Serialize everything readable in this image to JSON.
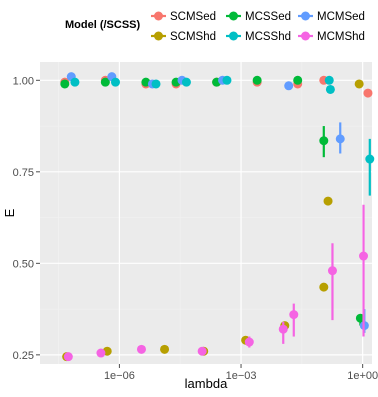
{
  "chart_data": {
    "type": "scatter",
    "title": "",
    "xlabel": "lambda",
    "ylabel": "E",
    "x_scale": "log10",
    "xlim": [
      1.1e-08,
      1.7
    ],
    "ylim": [
      0.225,
      1.05
    ],
    "x_ticks": [
      1e-06,
      0.001,
      1
    ],
    "x_tick_labels": [
      "1e−06",
      "1e−03",
      "1e+00"
    ],
    "y_ticks": [
      0.25,
      0.5,
      0.75,
      1.0
    ],
    "y_tick_labels": [
      "0.25",
      "0.50",
      "0.75",
      "1.00"
    ],
    "grid": true,
    "legend": {
      "title": "Model (/SCSS)",
      "position": "top",
      "entries": [
        "SCMSed",
        "MCSSed",
        "MCMSed",
        "SCMShd",
        "MCSShd",
        "MCMShd"
      ]
    },
    "series": [
      {
        "name": "SCMSed",
        "color": "#F8766D",
        "points": [
          {
            "x": 4.5e-08,
            "y": 0.995
          },
          {
            "x": 4.5e-07,
            "y": 1.0
          },
          {
            "x": 4.5e-06,
            "y": 0.99
          },
          {
            "x": 2.5e-05,
            "y": 0.99
          },
          {
            "x": 0.00025,
            "y": 0.995
          },
          {
            "x": 0.0025,
            "y": 0.995
          },
          {
            "x": 0.025,
            "y": 0.99
          },
          {
            "x": 0.11,
            "y": 1.0
          },
          {
            "x": 1.35,
            "y": 0.965
          }
        ]
      },
      {
        "name": "MCSSed",
        "color": "#00BA38",
        "points": [
          {
            "x": 4.5e-08,
            "y": 0.99
          },
          {
            "x": 4.5e-07,
            "y": 0.995
          },
          {
            "x": 4.5e-06,
            "y": 0.995
          },
          {
            "x": 2.5e-05,
            "y": 0.995
          },
          {
            "x": 0.00025,
            "y": 0.995
          },
          {
            "x": 0.0025,
            "y": 1.0
          },
          {
            "x": 0.025,
            "y": 1.0
          },
          {
            "x": 0.11,
            "y": 0.835,
            "lo": 0.79,
            "hi": 0.875
          },
          {
            "x": 0.88,
            "y": 0.35,
            "lo": 0.33,
            "hi": 0.36
          }
        ]
      },
      {
        "name": "MCMSed",
        "color": "#619CFF",
        "points": [
          {
            "x": 6.5e-08,
            "y": 1.01
          },
          {
            "x": 6.5e-07,
            "y": 1.01
          },
          {
            "x": 6.5e-06,
            "y": 0.99
          },
          {
            "x": 3.5e-05,
            "y": 1.0
          },
          {
            "x": 0.00035,
            "y": 1.0
          },
          {
            "x": 0.015,
            "y": 0.985
          },
          {
            "x": 0.28,
            "y": 0.84,
            "lo": 0.8,
            "hi": 0.885
          },
          {
            "x": 1.1,
            "y": 0.33,
            "lo": 0.31,
            "hi": 0.375
          }
        ]
      },
      {
        "name": "SCMShd",
        "color": "#B79F00",
        "points": [
          {
            "x": 5e-08,
            "y": 0.245
          },
          {
            "x": 5e-07,
            "y": 0.26
          },
          {
            "x": 1.3e-05,
            "y": 0.265
          },
          {
            "x": 0.00012,
            "y": 0.26
          },
          {
            "x": 0.0013,
            "y": 0.29
          },
          {
            "x": 0.012,
            "y": 0.33
          },
          {
            "x": 0.11,
            "y": 0.435
          },
          {
            "x": 0.14,
            "y": 0.67
          },
          {
            "x": 0.82,
            "y": 0.99
          }
        ]
      },
      {
        "name": "MCSShd",
        "color": "#00BFC4",
        "points": [
          {
            "x": 8e-08,
            "y": 0.995
          },
          {
            "x": 8e-07,
            "y": 0.995
          },
          {
            "x": 8e-06,
            "y": 0.99
          },
          {
            "x": 4.5e-05,
            "y": 0.995
          },
          {
            "x": 0.00045,
            "y": 1.0
          },
          {
            "x": 0.15,
            "y": 1.0
          },
          {
            "x": 0.16,
            "y": 0.975
          },
          {
            "x": 1.5,
            "y": 0.785,
            "lo": 0.685,
            "hi": 0.84
          }
        ]
      },
      {
        "name": "MCMShd",
        "color": "#F564E3",
        "points": [
          {
            "x": 5.5e-08,
            "y": 0.245
          },
          {
            "x": 3.5e-07,
            "y": 0.255
          },
          {
            "x": 3.5e-06,
            "y": 0.265
          },
          {
            "x": 0.00011,
            "y": 0.26
          },
          {
            "x": 0.0016,
            "y": 0.285,
            "lo": 0.27,
            "hi": 0.3
          },
          {
            "x": 0.011,
            "y": 0.32,
            "lo": 0.28,
            "hi": 0.34
          },
          {
            "x": 0.02,
            "y": 0.36,
            "lo": 0.3,
            "hi": 0.39
          },
          {
            "x": 0.18,
            "y": 0.48,
            "lo": 0.345,
            "hi": 0.555
          },
          {
            "x": 1.05,
            "y": 0.52,
            "lo": 0.3,
            "hi": 0.66
          }
        ]
      }
    ]
  }
}
